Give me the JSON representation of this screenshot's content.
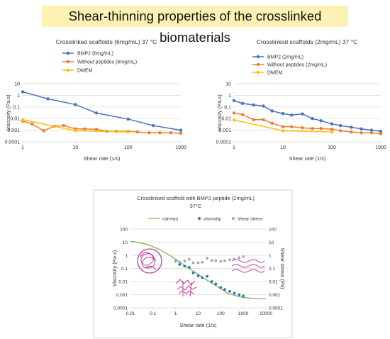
{
  "banner": {
    "title": "Shear-thinning properties of the crosslinked biomaterials"
  },
  "chart_data": [
    {
      "type": "line",
      "title": "Crosslinked scaffolds (6mg/mL) 37 °C",
      "xlabel": "Shear rate (1/s)",
      "ylabel": "Viscosity (Pa.s)",
      "xscale": "log",
      "yscale": "log",
      "xlim": [
        1,
        1000
      ],
      "ylim": [
        0.0001,
        10
      ],
      "xticks": [
        "1",
        "10",
        "100",
        "1000"
      ],
      "yticks": [
        "10",
        "1",
        "0.1",
        "0.01",
        "0.001",
        "0.0001"
      ],
      "legend_position": "top-left",
      "series": [
        {
          "name": "BMP2 (6mg/mL)",
          "color": "#4472c4",
          "x": [
            1,
            3,
            10,
            25,
            100,
            300,
            1000
          ],
          "y": [
            2,
            0.5,
            0.16,
            0.03,
            0.009,
            0.0025,
            0.001
          ]
        },
        {
          "name": "Without peptides (6mg/mL)",
          "color": "#ed7d31",
          "x": [
            1,
            1.5,
            2.5,
            4,
            6,
            10,
            15,
            25,
            40,
            60,
            100,
            150,
            250,
            400,
            650,
            1000
          ],
          "y": [
            0.006,
            0.0035,
            0.0009,
            0.0022,
            0.0025,
            0.0013,
            0.0013,
            0.0012,
            0.0008,
            0.0008,
            0.0008,
            0.0007,
            0.0006,
            0.0006,
            0.0006,
            0.00055
          ]
        },
        {
          "name": "DMEM",
          "color": "#ffc000",
          "x": [
            1,
            10,
            100
          ],
          "y": [
            0.008,
            0.0009,
            0.0007
          ]
        }
      ]
    },
    {
      "type": "line",
      "title": "Crosslinked scaffolds (2mg/mL) 37 °C",
      "xlabel": "Shear rate (1/s)",
      "ylabel": "Viscosity (Pa.s)",
      "xscale": "log",
      "yscale": "log",
      "xlim": [
        1,
        1000
      ],
      "ylim": [
        0.0001,
        10
      ],
      "xticks": [
        "1",
        "10",
        "100",
        "1000"
      ],
      "yticks": [
        "10",
        "1",
        "0.1",
        "0.01",
        "0.001",
        "0.0001"
      ],
      "legend_position": "top-left",
      "series": [
        {
          "name": "BMP2 (2mg/mL)",
          "color": "#4472c4",
          "x": [
            1,
            1.5,
            2.5,
            4,
            6,
            10,
            15,
            25,
            40,
            60,
            100,
            150,
            250,
            400,
            650,
            1000
          ],
          "y": [
            0.35,
            0.2,
            0.15,
            0.12,
            0.045,
            0.027,
            0.02,
            0.025,
            0.01,
            0.0065,
            0.0035,
            0.0025,
            0.0018,
            0.0013,
            0.001,
            0.0008
          ]
        },
        {
          "name": "Without peptides (2mg/mL)",
          "color": "#ed7d31",
          "x": [
            1,
            1.5,
            2.5,
            4,
            6,
            10,
            15,
            25,
            40,
            60,
            100,
            150,
            250,
            400,
            650,
            1000
          ],
          "y": [
            0.03,
            0.022,
            0.008,
            0.008,
            0.004,
            0.002,
            0.002,
            0.0016,
            0.0014,
            0.0014,
            0.0012,
            0.0009,
            0.0007,
            0.0006,
            0.0006,
            0.0005
          ]
        },
        {
          "name": "DMEM",
          "color": "#ffc000",
          "x": [
            1,
            10,
            100
          ],
          "y": [
            0.0075,
            0.0009,
            0.0007
          ]
        }
      ]
    },
    {
      "type": "scatter",
      "title": "Crosslinked scaffold with BMP2 peptide (2mg/mL)",
      "subtitle": "37°C",
      "xlabel": "Shear rate (1/s)",
      "ylabel": "Viscosity (Pa.s)",
      "y2label": "Shear stress (Pa)",
      "xscale": "log",
      "yscale": "log",
      "xlim": [
        0.01,
        10000
      ],
      "ylim": [
        0.0001,
        100
      ],
      "xticks": [
        "0.01",
        "0.1",
        "1",
        "10",
        "100",
        "1000",
        "10000"
      ],
      "yticks": [
        "100",
        "10",
        "1",
        "0.1",
        "0.01",
        "0.001",
        "0.0001"
      ],
      "y2ticks": [
        "100",
        "10",
        "1",
        "0.1",
        "0.01",
        "0.001",
        "0.0001"
      ],
      "legend_position": "top",
      "legend": [
        "carreau",
        "viscosity",
        "shear stress"
      ],
      "series": [
        {
          "name": "carreau",
          "style": "line",
          "color": "#70ad47",
          "x": [
            0.01,
            0.02,
            0.05,
            0.1,
            0.2,
            0.5,
            1,
            2,
            5,
            10,
            20,
            50,
            100,
            200,
            500,
            1000,
            2000,
            5000,
            10000
          ],
          "y": [
            12,
            10,
            7,
            4.5,
            2.7,
            1.1,
            0.5,
            0.22,
            0.075,
            0.035,
            0.016,
            0.006,
            0.0028,
            0.0013,
            0.0008,
            0.0006,
            0.00055,
            0.0005,
            0.0005
          ]
        },
        {
          "name": "viscosity",
          "style": "markers",
          "color": "#2e75b6",
          "x": [
            1,
            1.5,
            2.5,
            4,
            6,
            10,
            15,
            25,
            40,
            60,
            100,
            150,
            250,
            400,
            650,
            1000
          ],
          "y": [
            0.35,
            0.2,
            0.15,
            0.12,
            0.045,
            0.027,
            0.02,
            0.025,
            0.01,
            0.0065,
            0.0035,
            0.0025,
            0.0018,
            0.0013,
            0.001,
            0.0008
          ]
        },
        {
          "name": "shear stress",
          "style": "markers",
          "color": "#a6a6a6",
          "axis": "y2",
          "x": [
            1,
            1.5,
            2.5,
            4,
            6,
            10,
            15,
            25,
            40,
            60,
            100,
            150,
            250,
            400,
            650,
            1000
          ],
          "y": [
            0.35,
            0.3,
            0.37,
            0.48,
            0.27,
            0.27,
            0.3,
            0.6,
            0.4,
            0.4,
            0.35,
            0.38,
            0.45,
            0.5,
            0.65,
            0.8
          ]
        }
      ]
    }
  ]
}
